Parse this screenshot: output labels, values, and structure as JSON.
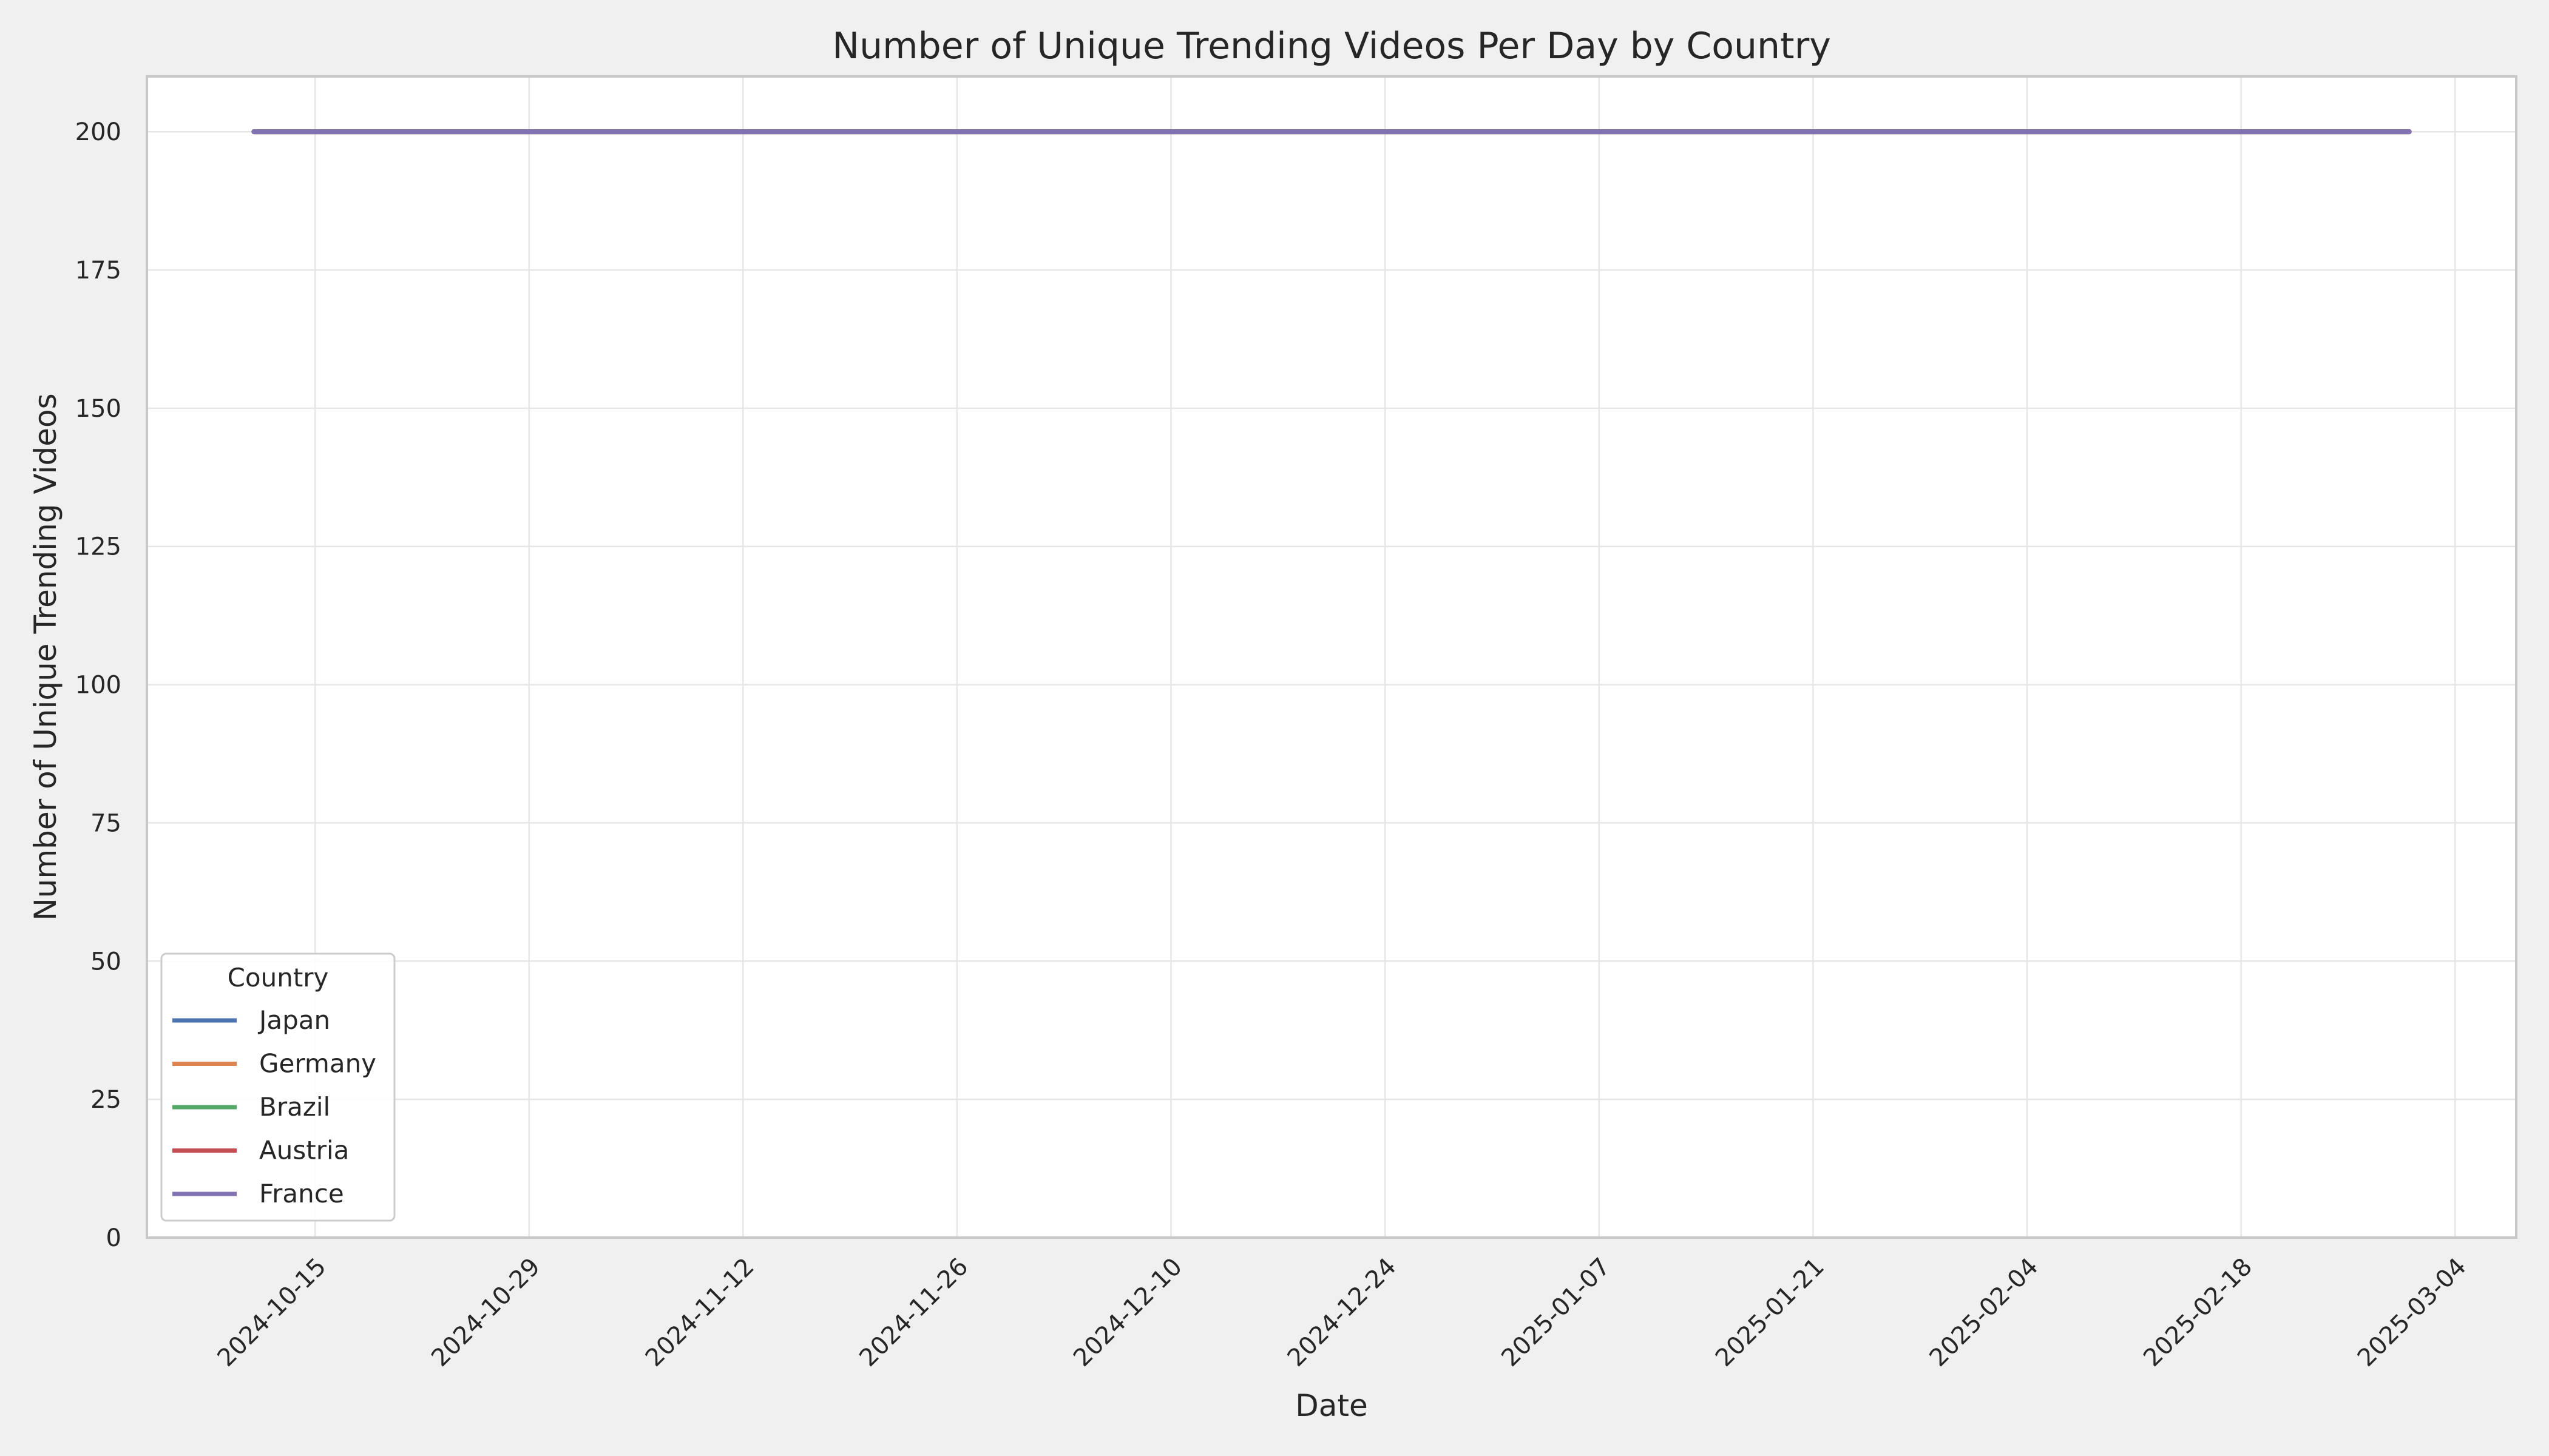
{
  "chart_data": {
    "type": "line",
    "title": "Number of Unique Trending Videos Per Day by Country",
    "xlabel": "Date",
    "ylabel": "Number of Unique Trending Videos",
    "x_start": "2024-10-11",
    "x_end": "2025-03-01",
    "xlim": [
      "2024-10-04",
      "2025-03-08"
    ],
    "ylim": [
      0,
      210
    ],
    "x_ticks": [
      "2024-10-15",
      "2024-10-29",
      "2024-11-12",
      "2024-11-26",
      "2024-12-10",
      "2024-12-24",
      "2025-01-07",
      "2025-01-21",
      "2025-02-04",
      "2025-02-18",
      "2025-03-04"
    ],
    "y_ticks": [
      0,
      25,
      50,
      75,
      100,
      125,
      150,
      175,
      200
    ],
    "grid": true,
    "legend": {
      "title": "Country",
      "position": "lower-left"
    },
    "series": [
      {
        "name": "Japan",
        "color": "#4c72b0",
        "value": 200
      },
      {
        "name": "Germany",
        "color": "#dd8452",
        "value": 200
      },
      {
        "name": "Brazil",
        "color": "#55a868",
        "value": 200
      },
      {
        "name": "Austria",
        "color": "#c44e52",
        "value": 200
      },
      {
        "name": "France",
        "color": "#8172b3",
        "value": 200
      }
    ]
  }
}
